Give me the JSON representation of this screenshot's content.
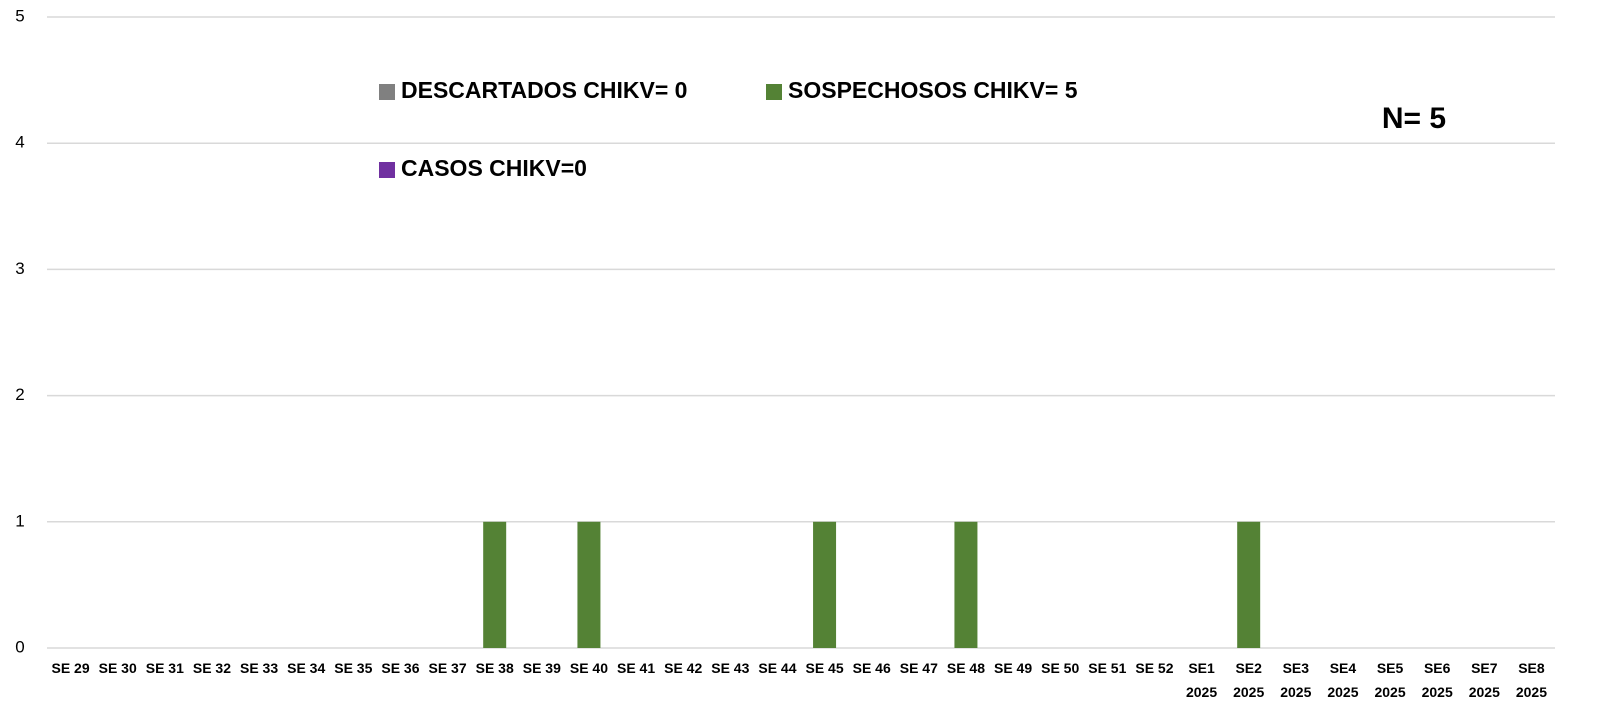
{
  "chart_data": {
    "type": "bar",
    "stacked": true,
    "categories": [
      "SE 29",
      "SE 30",
      "SE 31",
      "SE 32",
      "SE 33",
      "SE 34",
      "SE 35",
      "SE 36",
      "SE 37",
      "SE 38",
      "SE 39",
      "SE 40",
      "SE 41",
      "SE 42",
      "SE 43",
      "SE 44",
      "SE 45",
      "SE 46",
      "SE 47",
      "SE 48",
      "SE 49",
      "SE 50",
      "SE 51",
      "SE 52",
      "SE1 2025",
      "SE2 2025",
      "SE3 2025",
      "SE4 2025",
      "SE5 2025",
      "SE6 2025",
      "SE7 2025",
      "SE8 2025"
    ],
    "series": [
      {
        "name": "DESCARTADOS CHIKV= 0",
        "color": "#808080",
        "values": [
          0,
          0,
          0,
          0,
          0,
          0,
          0,
          0,
          0,
          0,
          0,
          0,
          0,
          0,
          0,
          0,
          0,
          0,
          0,
          0,
          0,
          0,
          0,
          0,
          0,
          0,
          0,
          0,
          0,
          0,
          0,
          0
        ]
      },
      {
        "name": "SOSPECHOSOS CHIKV= 5",
        "color": "#548235",
        "values": [
          0,
          0,
          0,
          0,
          0,
          0,
          0,
          0,
          0,
          1,
          0,
          1,
          0,
          0,
          0,
          0,
          1,
          0,
          0,
          1,
          0,
          0,
          0,
          0,
          0,
          1,
          0,
          0,
          0,
          0,
          0,
          0
        ]
      },
      {
        "name": "CASOS CHIKV=0",
        "color": "#7030a0",
        "values": [
          0,
          0,
          0,
          0,
          0,
          0,
          0,
          0,
          0,
          0,
          0,
          0,
          0,
          0,
          0,
          0,
          0,
          0,
          0,
          0,
          0,
          0,
          0,
          0,
          0,
          0,
          0,
          0,
          0,
          0,
          0,
          0
        ]
      }
    ],
    "annotation": "N= 5",
    "ylim": [
      0,
      5
    ],
    "yticks": [
      0,
      1,
      2,
      3,
      4,
      5
    ],
    "grid": true
  }
}
